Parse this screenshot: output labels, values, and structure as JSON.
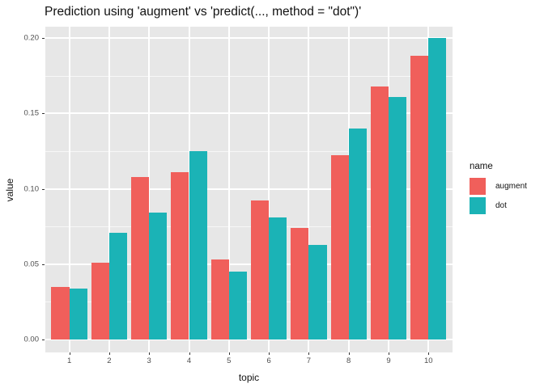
{
  "chart": {
    "title": "Prediction using 'augment' vs 'predict(..., method = \"dot\")'"
  },
  "chart_data": {
    "type": "bar",
    "subtype": "grouped-dodged",
    "title": "Prediction using 'augment' vs 'predict(..., method = \"dot\")'",
    "categories": [
      "1",
      "2",
      "3",
      "4",
      "5",
      "6",
      "7",
      "8",
      "9",
      "10"
    ],
    "series": [
      {
        "name": "augment",
        "color": "#F05F5B",
        "values": [
          0.035,
          0.051,
          0.108,
          0.111,
          0.053,
          0.092,
          0.074,
          0.122,
          0.168,
          0.188
        ]
      },
      {
        "name": "dot",
        "color": "#1BB3B6",
        "values": [
          0.034,
          0.071,
          0.084,
          0.125,
          0.045,
          0.081,
          0.063,
          0.14,
          0.161,
          0.2
        ]
      }
    ],
    "xlabel": "topic",
    "ylabel": "value",
    "ylim": [
      -0.009,
      0.2075
    ],
    "yticks": [
      0,
      0.05,
      0.1,
      0.15,
      0.2
    ],
    "ytick_labels": [
      "0.00",
      "0.05",
      "0.10",
      "0.15",
      "0.20"
    ],
    "legend_title": "name",
    "legend_position": "right",
    "grid": "white major and minor horizontal gridlines plus vertical category gridlines on gray panel",
    "panel_background": "#E7E7E7",
    "theme": "ggplot2 theme_gray"
  },
  "legend": {
    "title": "name",
    "items": [
      {
        "label": "augment",
        "color": "#F05F5B"
      },
      {
        "label": "dot",
        "color": "#1BB3B6"
      }
    ]
  }
}
